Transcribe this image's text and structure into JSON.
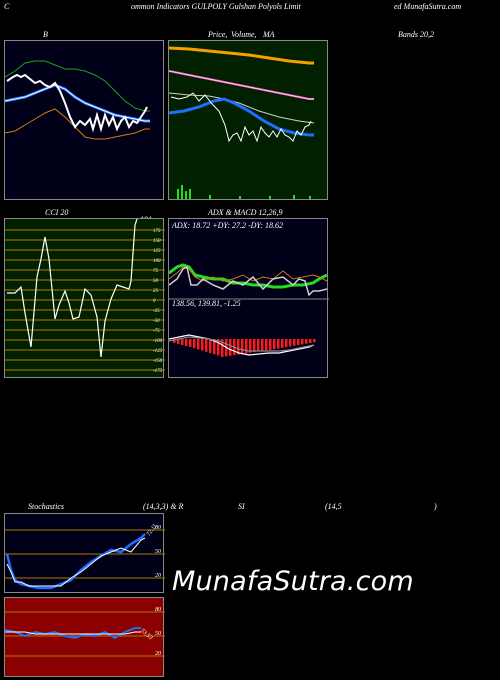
{
  "header": {
    "left": "C",
    "title": "ommon Indicators GULPOLY Gulshan Polyols Limit",
    "right": "ed MunafaSutra.com"
  },
  "bb_panel": {
    "label": "B",
    "bg": "#000018"
  },
  "price_panel": {
    "label_pre": "Price,",
    "label_overlap": "Volume,",
    "label_post": "MA",
    "bg": "#002000"
  },
  "bands_label": "Bands 20,2",
  "cci_panel": {
    "label": "CCI 20",
    "value": "191",
    "ticks": [
      "175",
      "150",
      "125",
      "100",
      "75",
      "50",
      "25",
      "0",
      "-25",
      "-50",
      "-75",
      "-100",
      "-125",
      "-150",
      "-175"
    ],
    "bg": "#002000"
  },
  "adx_panel": {
    "label": "ADX  & MACD 12,26,9",
    "adx_text": "ADX: 18.72  +DY: 27.2  -DY: 18.62",
    "macd_text": "138.56,  139.81,  -1.25",
    "bg": "#000018"
  },
  "stoch_header": {
    "left": "Stochastics",
    "mid": "(14,3,3) & R",
    "si": "SI",
    "params": "(14,5",
    "close": ")"
  },
  "stoch_panel": {
    "ticks": [
      "80",
      "50",
      "20"
    ],
    "value_label": "72.11",
    "bg": "#000018"
  },
  "rsi_panel": {
    "ticks": [
      "80",
      "50",
      "20"
    ],
    "value_label": "53.53",
    "bg": "#8b0000"
  },
  "watermark": "MunafaSutra.com",
  "colors": {
    "orange": "#f5a000",
    "pink": "#ff66cc",
    "blue": "#1e6fff",
    "green_line": "#22dd22",
    "grid": "#b07a00"
  }
}
